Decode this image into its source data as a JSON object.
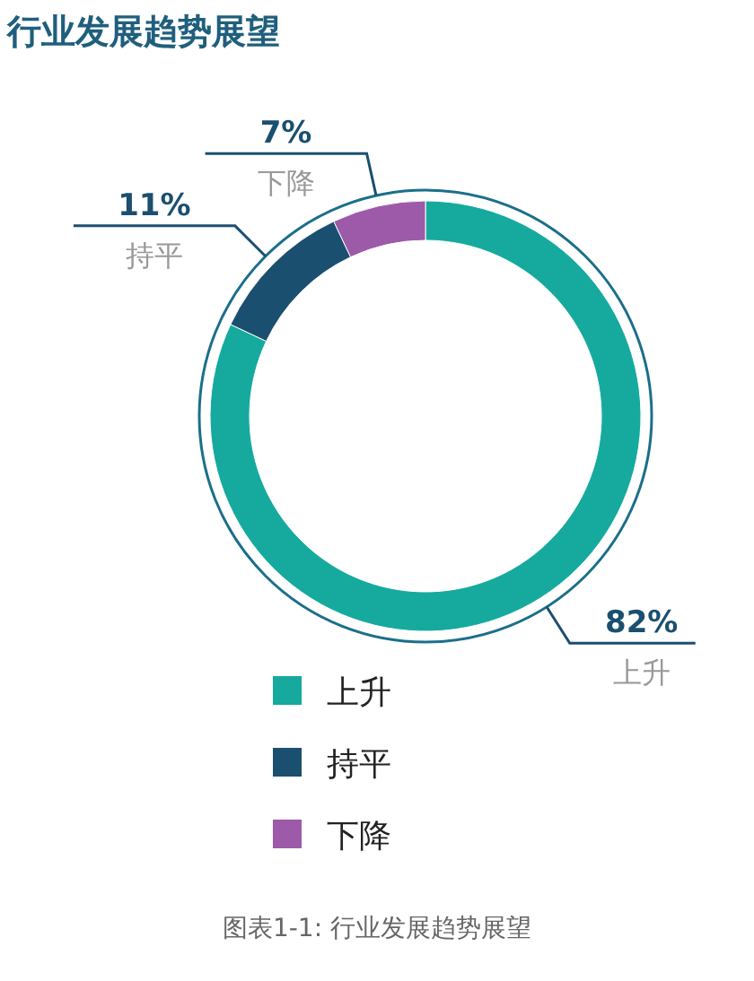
{
  "chart_data": {
    "type": "donut",
    "title": "行业发展趋势展望",
    "categories": [
      "上升",
      "持平",
      "下降"
    ],
    "values": [
      82,
      11,
      7
    ],
    "colors": [
      "#16aa9e",
      "#1b4f6f",
      "#9c5aa8"
    ],
    "value_labels": [
      "82%",
      "11%",
      "7%"
    ],
    "legend": "bottom",
    "annotations": [
      "图表1-1: 行业发展趋势展望"
    ]
  }
}
